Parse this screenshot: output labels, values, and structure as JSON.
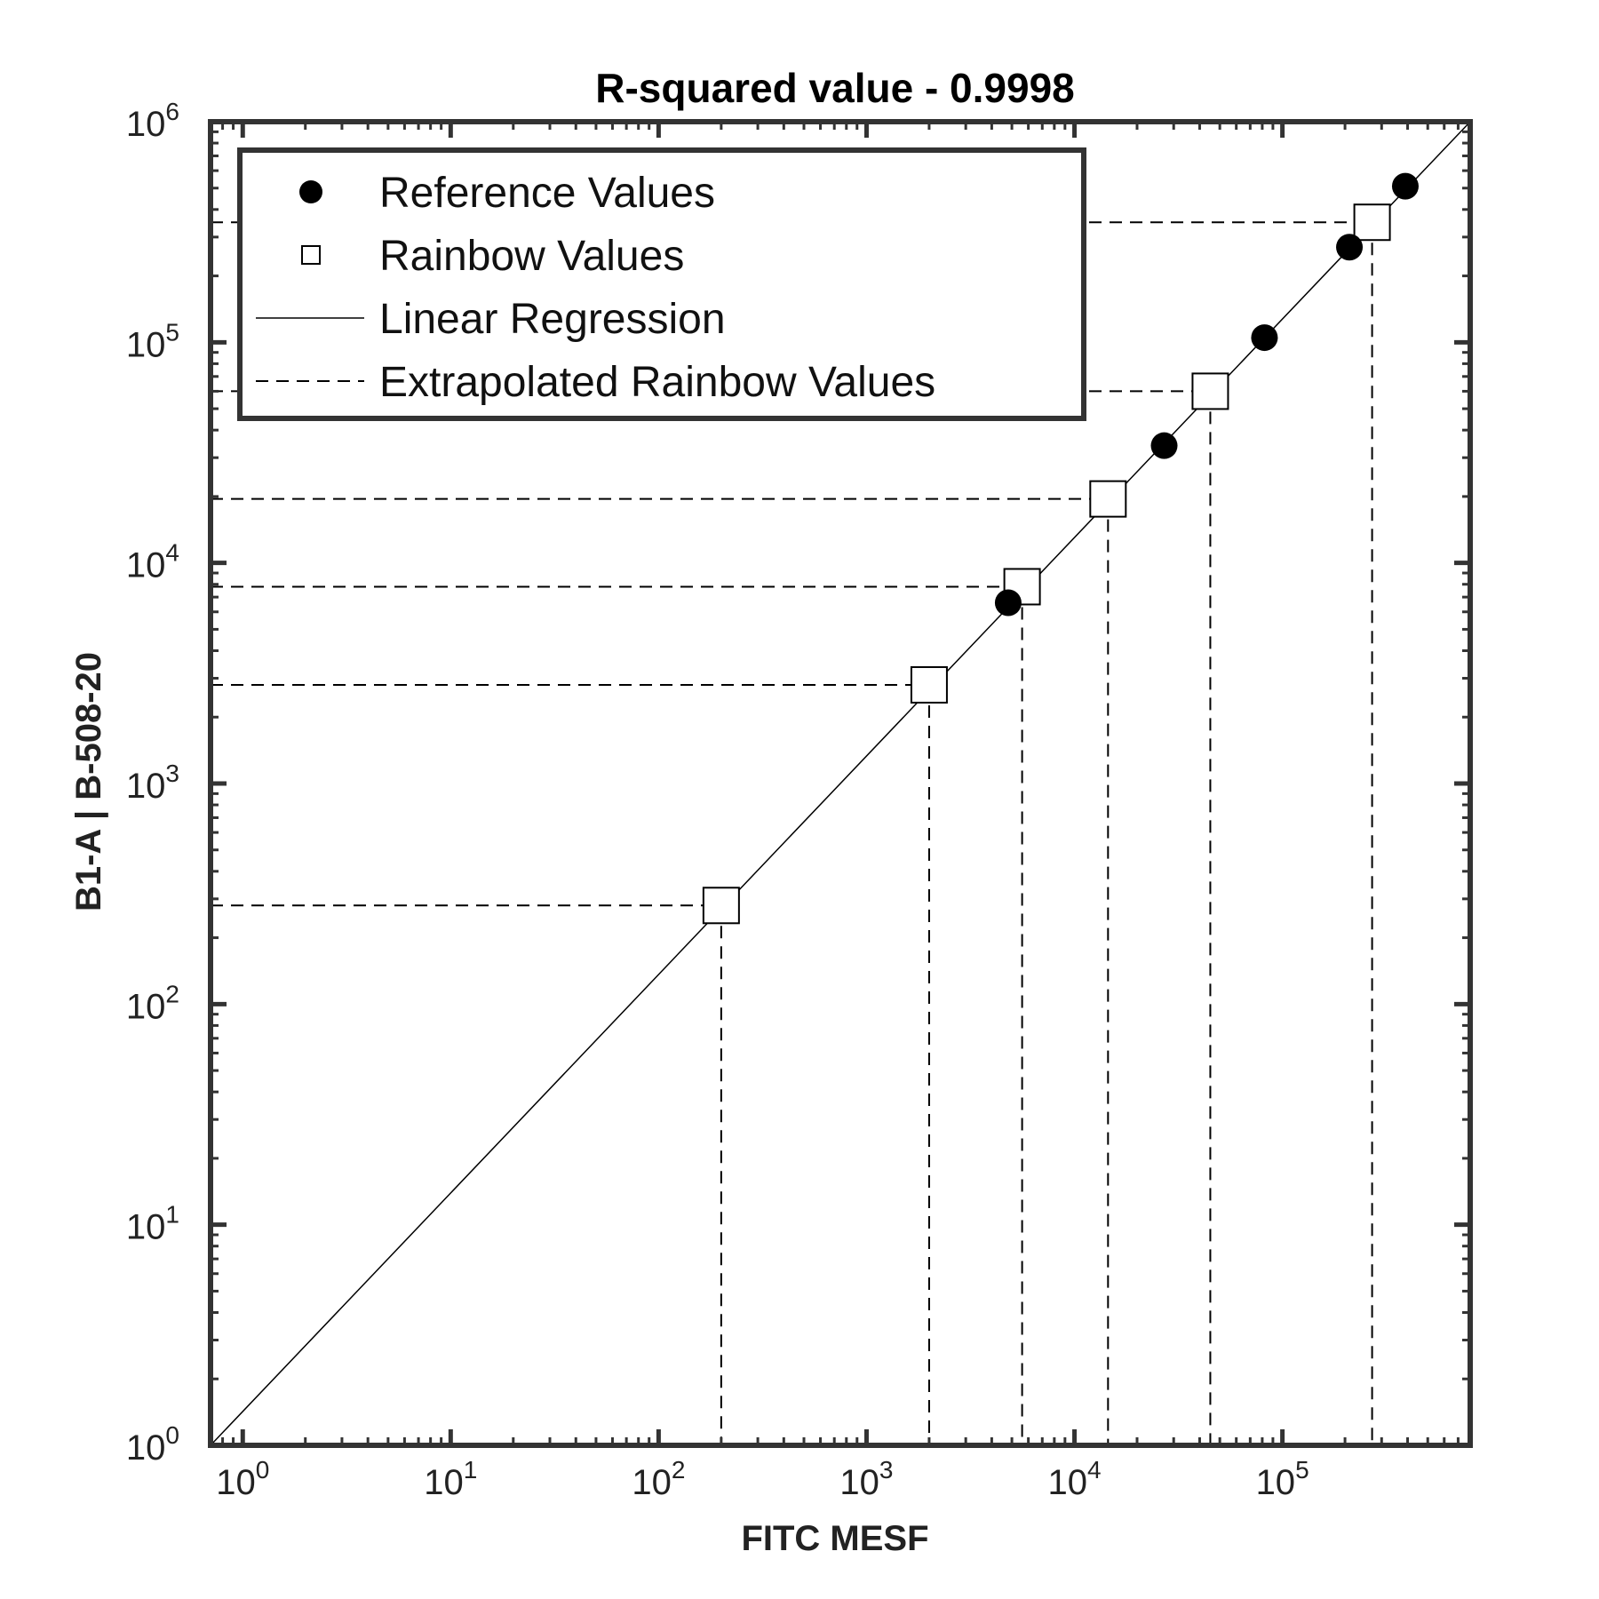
{
  "chart_data": {
    "type": "scatter",
    "title": "R-squared value - 0.9998",
    "xlabel": "FITC MESF",
    "ylabel": "B1-A | B-508-20",
    "x_scale": "log",
    "y_scale": "log",
    "xlim": [
      0.7,
      800000
    ],
    "ylim": [
      1,
      1000000
    ],
    "x_ticks": [
      {
        "base": "10",
        "exp": "0",
        "value": 1
      },
      {
        "base": "10",
        "exp": "1",
        "value": 10
      },
      {
        "base": "10",
        "exp": "2",
        "value": 100
      },
      {
        "base": "10",
        "exp": "3",
        "value": 1000
      },
      {
        "base": "10",
        "exp": "4",
        "value": 10000
      },
      {
        "base": "10",
        "exp": "5",
        "value": 100000
      }
    ],
    "y_ticks": [
      {
        "base": "10",
        "exp": "0",
        "value": 1
      },
      {
        "base": "10",
        "exp": "1",
        "value": 10
      },
      {
        "base": "10",
        "exp": "2",
        "value": 100
      },
      {
        "base": "10",
        "exp": "3",
        "value": 1000
      },
      {
        "base": "10",
        "exp": "4",
        "value": 10000
      },
      {
        "base": "10",
        "exp": "5",
        "value": 100000
      },
      {
        "base": "10",
        "exp": "6",
        "value": 1000000
      }
    ],
    "grid": false,
    "legend_position": "top-left",
    "series": [
      {
        "name": "Reference Values",
        "marker": "filled-circle",
        "color": "#000000",
        "points": [
          {
            "x": 4800,
            "y": 6600
          },
          {
            "x": 27000,
            "y": 34000
          },
          {
            "x": 82000,
            "y": 105000
          },
          {
            "x": 210000,
            "y": 270000
          },
          {
            "x": 390000,
            "y": 510000
          }
        ]
      },
      {
        "name": "Rainbow Values",
        "marker": "open-square",
        "color": "#000000",
        "points": [
          {
            "x": 200,
            "y": 280
          },
          {
            "x": 2000,
            "y": 2800
          },
          {
            "x": 5600,
            "y": 7800
          },
          {
            "x": 14500,
            "y": 19500
          },
          {
            "x": 45000,
            "y": 60000
          },
          {
            "x": 270000,
            "y": 350000
          }
        ]
      },
      {
        "name": "Linear Regression",
        "style": "solid-line",
        "color": "#000000",
        "points": [
          {
            "x": 0.7,
            "y": 1
          },
          {
            "x": 800000,
            "y": 1000000
          }
        ]
      },
      {
        "name": "Extrapolated Rainbow Values",
        "style": "dashed-line",
        "color": "#000000"
      }
    ]
  }
}
